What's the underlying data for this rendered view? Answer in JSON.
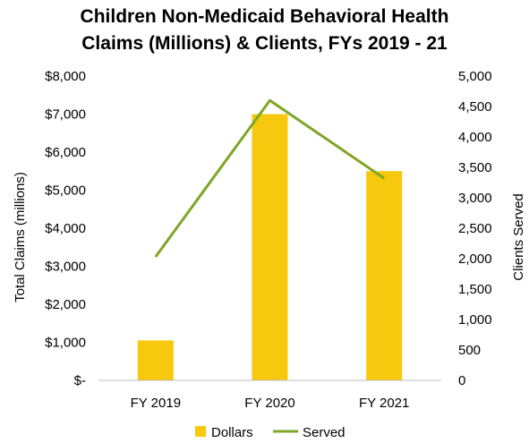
{
  "chart_data": {
    "type": "bar+line",
    "title_lines": [
      "Children Non-Medicaid Behavioral Health",
      "Claims (Millions) & Clients, FYs 2019 - 21"
    ],
    "categories": [
      "FY 2019",
      "FY 2020",
      "FY 2021"
    ],
    "series": [
      {
        "name": "Dollars",
        "type": "bar",
        "axis": "left",
        "color": "#F6C90E",
        "values": [
          1050,
          7000,
          5500
        ]
      },
      {
        "name": "Served",
        "type": "line",
        "axis": "right",
        "color": "#7FA627",
        "values": [
          2030,
          4600,
          3320
        ]
      }
    ],
    "ylabel": "Total Claims (millions)",
    "y2label": "Clients Served",
    "ylim": [
      0,
      8000
    ],
    "y2lim": [
      0,
      5000
    ],
    "y_ticks": [
      "$-",
      "$1,000",
      "$2,000",
      "$3,000",
      "$4,000",
      "$5,000",
      "$6,000",
      "$7,000",
      "$8,000"
    ],
    "y2_ticks": [
      "0",
      "500",
      "1,000",
      "1,500",
      "2,000",
      "2,500",
      "3,000",
      "3,500",
      "4,000",
      "4,500",
      "5,000"
    ],
    "legend_position": "bottom",
    "grid": false
  }
}
